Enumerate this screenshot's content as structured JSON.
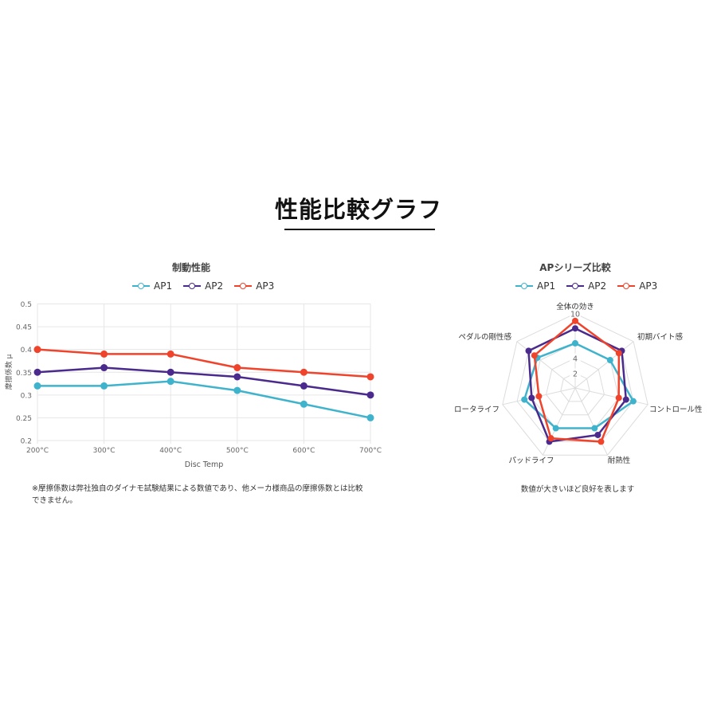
{
  "page": {
    "title": "性能比較グラフ"
  },
  "colors": {
    "AP1": "#3fb3cc",
    "AP2": "#4a2a8c",
    "AP3": "#f0432c",
    "grid": "#e6e6e6",
    "title_rule": "#111111"
  },
  "line_chart": {
    "title": "制動性能",
    "legend": [
      "AP1",
      "AP2",
      "AP3"
    ],
    "ylabel": "摩擦係数 μ",
    "xlabel": "Disc Temp",
    "y_ticks": [
      "0.5",
      "0.45",
      "0.4",
      "0.35",
      "0.3",
      "0.25",
      "0.2"
    ],
    "x_ticks": [
      "200°C",
      "300°C",
      "400°C",
      "500°C",
      "600°C",
      "700°C"
    ],
    "note": "※摩擦係数は弊社独自のダイナモ試験結果による数値であり、他メーカ様商品の摩擦係数とは比較できません。"
  },
  "radar_chart": {
    "title": "APシリーズ比較",
    "legend": [
      "AP1",
      "AP2",
      "AP3"
    ],
    "axes": [
      "全体の効き",
      "初期バイト感",
      "コントロール性",
      "耐熱性",
      "パッドライフ",
      "ロータライフ",
      "ペダルの剛性感"
    ],
    "tick_labels": [
      "2",
      "4",
      "10"
    ],
    "note": "数値が大きいほど良好を表します"
  },
  "chart_data": [
    {
      "type": "line",
      "title": "制動性能",
      "xlabel": "Disc Temp",
      "ylabel": "摩擦係数 μ",
      "categories": [
        "200°C",
        "300°C",
        "400°C",
        "500°C",
        "600°C",
        "700°C"
      ],
      "series": [
        {
          "name": "AP1",
          "color": "#3fb3cc",
          "values": [
            0.32,
            0.32,
            0.33,
            0.31,
            0.28,
            0.25
          ]
        },
        {
          "name": "AP2",
          "color": "#4a2a8c",
          "values": [
            0.35,
            0.36,
            0.35,
            0.34,
            0.32,
            0.3
          ]
        },
        {
          "name": "AP3",
          "color": "#f0432c",
          "values": [
            0.4,
            0.39,
            0.39,
            0.36,
            0.35,
            0.34
          ]
        }
      ],
      "ylim": [
        0.2,
        0.5
      ],
      "y_step": 0.05,
      "grid": true,
      "legend_position": "top"
    },
    {
      "type": "radar",
      "title": "APシリーズ比較",
      "categories": [
        "全体の効き",
        "初期バイト感",
        "コントロール性",
        "耐熱性",
        "パッドライフ",
        "ロータライフ",
        "ペダルの剛性感"
      ],
      "series": [
        {
          "name": "AP1",
          "color": "#3fb3cc",
          "values": [
            6,
            6,
            8,
            6,
            6,
            7,
            6.5
          ]
        },
        {
          "name": "AP2",
          "color": "#4a2a8c",
          "values": [
            8,
            8,
            7,
            7,
            8,
            6,
            8
          ]
        },
        {
          "name": "AP3",
          "color": "#f0432c",
          "values": [
            9,
            7.5,
            6,
            8,
            7.5,
            5,
            7
          ]
        }
      ],
      "rlim": [
        0,
        10
      ],
      "r_step": 2,
      "grid": true,
      "legend_position": "top",
      "annotation": "数値が大きいほど良好を表します"
    }
  ]
}
